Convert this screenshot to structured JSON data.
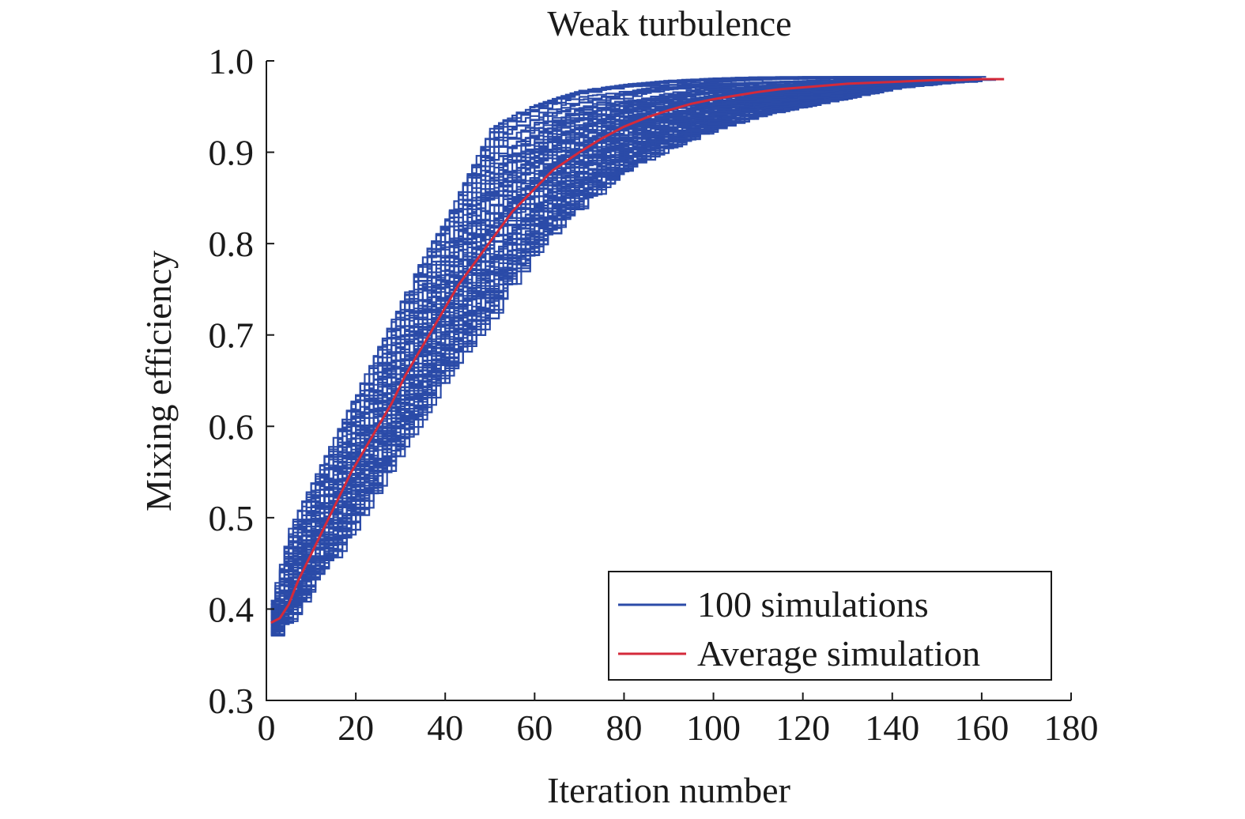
{
  "chart_data": {
    "type": "line",
    "title": "Weak turbulence",
    "xlabel": "Iteration number",
    "ylabel": "Mixing efficiency",
    "xlim": [
      0,
      180
    ],
    "ylim": [
      0.3,
      1.0
    ],
    "xticks": [
      "0",
      "20",
      "40",
      "60",
      "80",
      "100",
      "120",
      "140",
      "160",
      "180"
    ],
    "yticks": [
      "0.3",
      "0.4",
      "0.5",
      "0.6",
      "0.7",
      "0.8",
      "0.9",
      "1.0"
    ],
    "grid": false,
    "legend_position": "bottom-right",
    "colors": {
      "simulations": "#2b4ba8",
      "average": "#d42a3a"
    },
    "series": [
      {
        "name": "100 simulations",
        "count": 100,
        "band_x": [
          1,
          5,
          10,
          15,
          20,
          25,
          30,
          35,
          40,
          45,
          50,
          55,
          60,
          65,
          70,
          80,
          90,
          100,
          110,
          120,
          130,
          140,
          150,
          160,
          165
        ],
        "band_low": [
          0.37,
          0.39,
          0.43,
          0.46,
          0.5,
          0.54,
          0.58,
          0.62,
          0.66,
          0.69,
          0.72,
          0.76,
          0.79,
          0.82,
          0.84,
          0.88,
          0.905,
          0.925,
          0.94,
          0.95,
          0.96,
          0.97,
          0.975,
          0.978,
          0.98
        ],
        "band_high": [
          0.41,
          0.49,
          0.54,
          0.59,
          0.64,
          0.69,
          0.74,
          0.79,
          0.83,
          0.88,
          0.93,
          0.945,
          0.955,
          0.963,
          0.97,
          0.976,
          0.98,
          0.982,
          0.983,
          0.983,
          0.983,
          0.982,
          0.981,
          0.98,
          0.98
        ]
      },
      {
        "name": "Average simulation",
        "x": [
          1,
          3,
          5,
          7,
          10,
          13,
          16,
          19,
          22,
          25,
          28,
          31,
          34,
          37,
          40,
          43,
          46,
          49,
          52,
          55,
          58,
          61,
          64,
          67,
          70,
          75,
          80,
          85,
          90,
          95,
          100,
          105,
          110,
          115,
          120,
          125,
          130,
          135,
          140,
          145,
          150,
          155,
          160,
          165
        ],
        "y": [
          0.385,
          0.39,
          0.405,
          0.43,
          0.46,
          0.49,
          0.52,
          0.55,
          0.575,
          0.6,
          0.625,
          0.655,
          0.68,
          0.705,
          0.73,
          0.755,
          0.775,
          0.795,
          0.815,
          0.835,
          0.85,
          0.865,
          0.88,
          0.89,
          0.9,
          0.915,
          0.928,
          0.938,
          0.946,
          0.953,
          0.958,
          0.962,
          0.966,
          0.969,
          0.971,
          0.973,
          0.975,
          0.976,
          0.977,
          0.978,
          0.979,
          0.979,
          0.98,
          0.98
        ]
      }
    ]
  }
}
